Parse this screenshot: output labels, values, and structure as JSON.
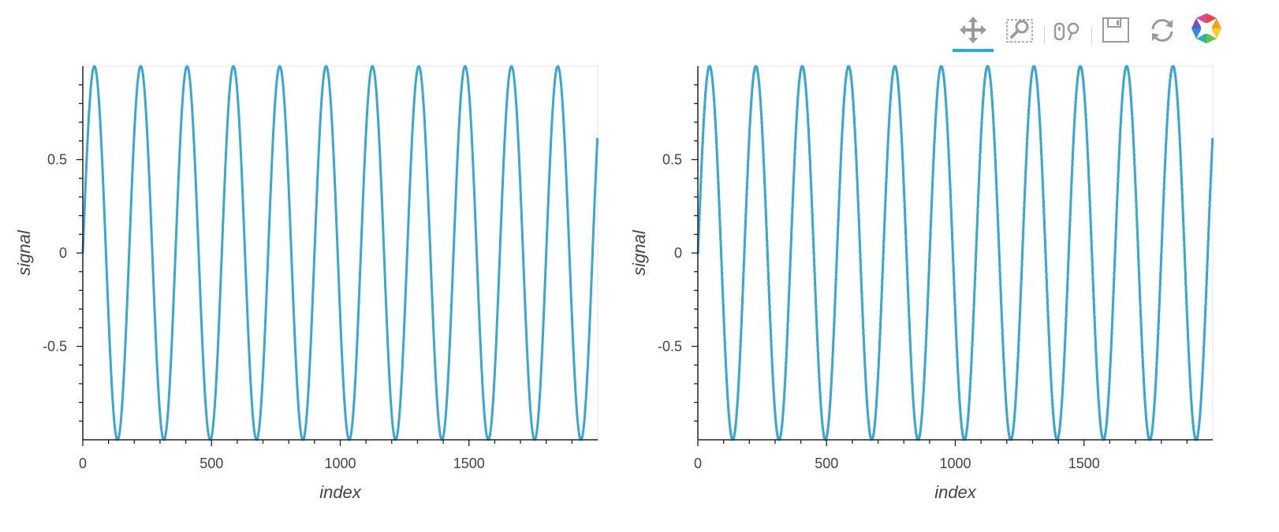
{
  "colors": {
    "accent": "#26aae1",
    "line": "#3aa6d4",
    "axis": "#222222",
    "frame": "#e5e5e5",
    "icon": "#9a9a9a"
  },
  "toolbar": {
    "tools": [
      {
        "name": "pan-tool",
        "icon": "pan-icon",
        "active": true
      },
      {
        "name": "box-zoom-tool",
        "icon": "box-zoom-icon",
        "active": false
      },
      {
        "name": "wheel-zoom-tool",
        "icon": "wheel-zoom-icon",
        "active": false
      },
      {
        "name": "save-tool",
        "icon": "save-icon",
        "active": false
      },
      {
        "name": "reset-tool",
        "icon": "reset-icon",
        "active": false
      },
      {
        "name": "bokeh-logo",
        "icon": "bokeh-logo-icon",
        "active": false
      }
    ]
  },
  "chart_data": [
    {
      "type": "line",
      "xlabel": "index",
      "ylabel": "signal",
      "xlim": [
        0,
        2000
      ],
      "ylim": [
        -1,
        1
      ],
      "x_ticks": [
        0,
        500,
        1000,
        1500
      ],
      "x_tick_labels": [
        "0",
        "500",
        "1000",
        "1500"
      ],
      "y_ticks": [
        -0.5,
        0,
        0.5
      ],
      "y_tick_labels": [
        "-0.5",
        "0",
        "0.5"
      ],
      "series": [
        {
          "function": "sin",
          "amplitude": 1,
          "period": 180,
          "x_start": 0,
          "x_end": 1999,
          "points": 2000,
          "style": "smooth"
        }
      ]
    },
    {
      "type": "line",
      "xlabel": "index",
      "ylabel": "signal",
      "xlim": [
        0,
        2000
      ],
      "ylim": [
        -1,
        1
      ],
      "x_ticks": [
        0,
        500,
        1000,
        1500
      ],
      "x_tick_labels": [
        "0",
        "500",
        "1000",
        "1500"
      ],
      "y_ticks": [
        -0.5,
        0,
        0.5
      ],
      "y_tick_labels": [
        "-0.5",
        "0",
        "0.5"
      ],
      "series": [
        {
          "function": "sin",
          "amplitude": 1,
          "period": 180,
          "x_start": 0,
          "x_end": 1999,
          "points": 2000,
          "style": "step"
        }
      ]
    }
  ]
}
